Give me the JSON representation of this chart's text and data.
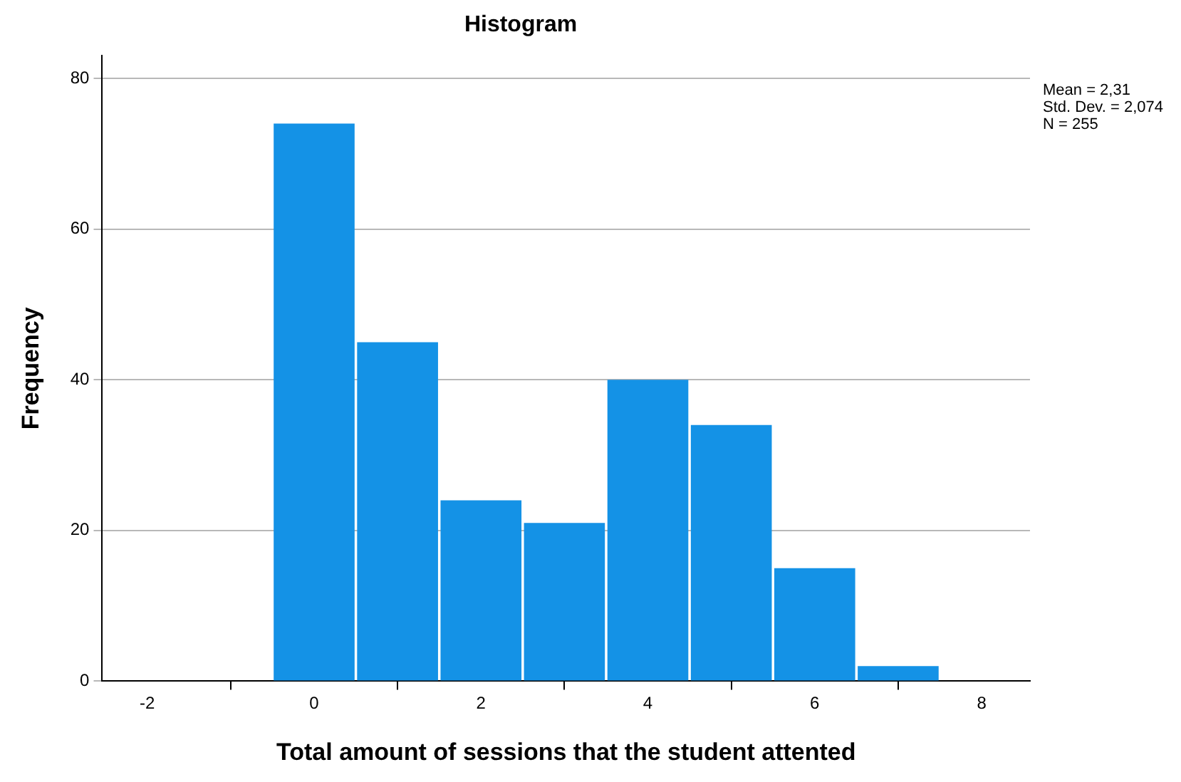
{
  "chart_data": {
    "type": "histogram",
    "title": "Histogram",
    "xlabel": "Total amount of sessions that the student attented",
    "ylabel": "Frequency",
    "bins": [
      -0.5,
      0.5,
      1.5,
      2.5,
      3.5,
      4.5,
      5.5,
      6.5,
      7.5
    ],
    "values": [
      74,
      45,
      24,
      21,
      40,
      34,
      15,
      2
    ],
    "color": "#1492e6",
    "xlim": [
      -2.54,
      8.58
    ],
    "xticks": [
      -2,
      0,
      2,
      4,
      6,
      8
    ],
    "ylim": [
      0,
      83
    ],
    "yticks": [
      0,
      20,
      40,
      60,
      80
    ],
    "grid": "y",
    "annotations": [
      "Mean = 2,31",
      "Std. Dev. = 2,074",
      "N = 255"
    ]
  }
}
